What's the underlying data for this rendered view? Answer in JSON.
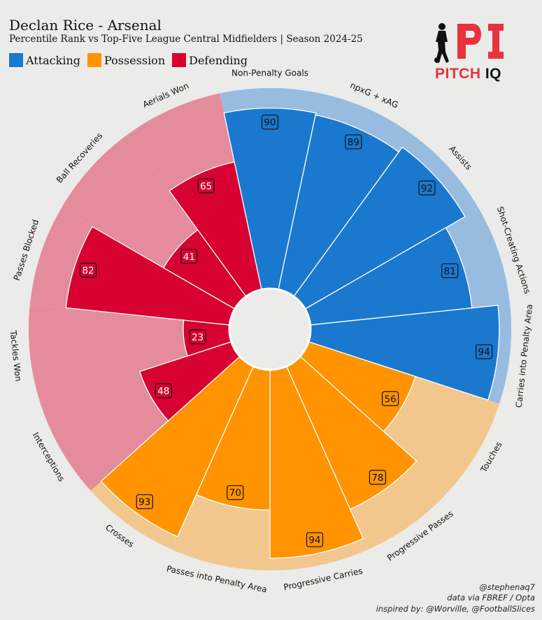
{
  "header": {
    "title": "Declan Rice - Arsenal",
    "subtitle": "Percentile Rank vs Top-Five League Central Midfielders | Season 2024-25"
  },
  "logo": {
    "mark": "PI",
    "text_part1": "PITCH",
    "text_part2": "IQ",
    "color_red": "#e8323c",
    "color_dark": "#111111",
    "icon": "footballer-silhouette-icon"
  },
  "credits": {
    "line1": "@stephenaq7",
    "line2": "data via FBREF / Opta",
    "line3": "inspired by: @Worville, @FootballSlices"
  },
  "chart_data": {
    "type": "radial-bar",
    "scale_max": 100,
    "legend": [
      {
        "name": "Attacking",
        "color": "#1a78cf"
      },
      {
        "name": "Possession",
        "color": "#ff9300"
      },
      {
        "name": "Defending",
        "color": "#d70232"
      }
    ],
    "background_colors": {
      "Attacking": "#97bce0",
      "Possession": "#f2c78d",
      "Defending": "#e48c9c"
    },
    "metrics": [
      {
        "label": "Non-Penalty Goals",
        "value": 90,
        "group": "Attacking"
      },
      {
        "label": "npxG + xAG",
        "value": 89,
        "group": "Attacking"
      },
      {
        "label": "Assists",
        "value": 92,
        "group": "Attacking"
      },
      {
        "label": "Shot-Creating Actions",
        "value": 81,
        "group": "Attacking"
      },
      {
        "label": "Carries into Penalty Area",
        "value": 94,
        "group": "Attacking"
      },
      {
        "label": "Touches",
        "value": 56,
        "group": "Possession"
      },
      {
        "label": "Progressive Passes",
        "value": 78,
        "group": "Possession"
      },
      {
        "label": "Progressive Carries",
        "value": 94,
        "group": "Possession"
      },
      {
        "label": "Passes into Penalty Area",
        "value": 70,
        "group": "Possession"
      },
      {
        "label": "Crosses",
        "value": 93,
        "group": "Possession"
      },
      {
        "label": "Interceptions",
        "value": 48,
        "group": "Defending"
      },
      {
        "label": "Tackles Won",
        "value": 23,
        "group": "Defending"
      },
      {
        "label": "Passes Blocked",
        "value": 82,
        "group": "Defending"
      },
      {
        "label": "Ball Recoveries",
        "value": 41,
        "group": "Defending"
      },
      {
        "label": "Aerials Won",
        "value": 65,
        "group": "Defending"
      }
    ]
  }
}
